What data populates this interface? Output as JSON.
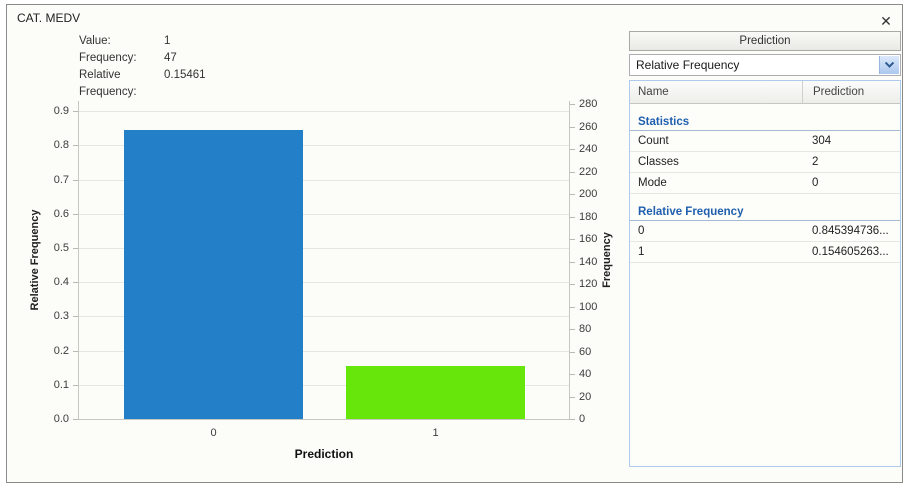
{
  "window": {
    "title": "CAT. MEDV",
    "close_glyph": "✕"
  },
  "info_panel": {
    "rows": [
      {
        "label": "Value:",
        "value": "1"
      },
      {
        "label": "Frequency:",
        "value": "47"
      },
      {
        "label": "Relative Frequency:",
        "value": "0.15461"
      }
    ]
  },
  "chart_data": {
    "type": "bar",
    "title": "",
    "categories": [
      "0",
      "1"
    ],
    "series": [
      {
        "name": "Relative Frequency",
        "values": [
          0.845394737,
          0.154605263
        ]
      },
      {
        "name": "Frequency",
        "values": [
          257,
          47
        ]
      }
    ],
    "bar_colors": [
      "#2380c8",
      "#66e60a"
    ],
    "xlabel": "Prediction",
    "ylabel_left": "Relative Frequency",
    "ylabel_right": "Frequency",
    "left_axis": {
      "min": 0,
      "max": 0.93,
      "tick_step": 0.1,
      "tick_max": 0.9
    },
    "right_axis": {
      "min": 0,
      "max": 283,
      "tick_step": 20,
      "tick_max": 280
    },
    "grid": true,
    "legend": "none"
  },
  "side_panel": {
    "tab_label": "Prediction",
    "dropdown_value": "Relative Frequency",
    "table": {
      "columns": [
        "Name",
        "Prediction"
      ],
      "sections": [
        {
          "header": "Statistics",
          "rows": [
            {
              "name": "Count",
              "value": "304"
            },
            {
              "name": "Classes",
              "value": "2"
            },
            {
              "name": "Mode",
              "value": "0"
            }
          ]
        },
        {
          "header": "Relative Frequency",
          "rows": [
            {
              "name": "0",
              "value": "0.845394736..."
            },
            {
              "name": "1",
              "value": "0.154605263..."
            }
          ]
        }
      ]
    }
  },
  "colors": {
    "bar_blue": "#2380c8",
    "bar_green": "#66e60a",
    "section_header_text": "#1f5fae",
    "table_border": "#aecbec",
    "gridline": "#e7e7e2"
  }
}
